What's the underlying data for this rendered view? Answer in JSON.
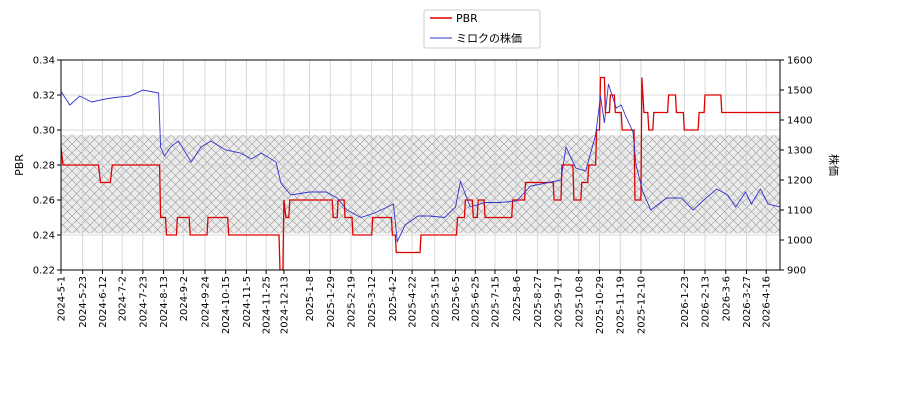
{
  "chart_data": {
    "type": "line",
    "title": "",
    "xlabel": "",
    "ylabel_left": "PBR",
    "ylabel_right": "株価",
    "ylim_left": [
      0.22,
      0.34
    ],
    "ylim_right": [
      900,
      1600
    ],
    "yticks_left": [
      "0.22",
      "0.24",
      "0.26",
      "0.28",
      "0.30",
      "0.32",
      "0.34"
    ],
    "yticks_right": [
      "900",
      "1000",
      "1100",
      "1200",
      "1300",
      "1400",
      "1500",
      "1600"
    ],
    "x_range": [
      "2024-5-1",
      "2026-4-30"
    ],
    "xticks": [
      "2024-5-1",
      "2024-5-23",
      "2024-6-12",
      "2024-7-2",
      "2024-7-23",
      "2024-8-13",
      "2024-9-2",
      "2024-9-24",
      "2024-10-15",
      "2024-11-5",
      "2024-11-25",
      "2024-12-13",
      "2025-1-8",
      "2025-1-29",
      "2025-2-19",
      "2025-3-12",
      "2025-4-2",
      "2025-4-22",
      "2025-5-15",
      "2025-6-5",
      "2025-6-25",
      "2025-7-15",
      "2025-8-6",
      "2025-8-27",
      "2025-9-17",
      "2025-10-8",
      "2025-10-29",
      "2025-11-19",
      "2025-12-10",
      "2026-1-23",
      "2026-2-13",
      "2026-3-6",
      "2026-3-27",
      "2026-4-16"
    ],
    "grid": true,
    "legend_position": "top-center",
    "band": {
      "pbr_low": 0.241,
      "pbr_high": 0.297
    },
    "series": [
      {
        "name": "PBR",
        "color": "#dd0000",
        "axis": "left",
        "points": [
          [
            "2024-5-1",
            0.29
          ],
          [
            "2024-5-3",
            0.28
          ],
          [
            "2024-6-8",
            0.28
          ],
          [
            "2024-6-10",
            0.27
          ],
          [
            "2024-6-20",
            0.27
          ],
          [
            "2024-6-22",
            0.28
          ],
          [
            "2024-8-9",
            0.28
          ],
          [
            "2024-8-10",
            0.25
          ],
          [
            "2024-8-15",
            0.25
          ],
          [
            "2024-8-16",
            0.24
          ],
          [
            "2024-8-26",
            0.24
          ],
          [
            "2024-8-27",
            0.25
          ],
          [
            "2024-9-8",
            0.25
          ],
          [
            "2024-9-9",
            0.24
          ],
          [
            "2024-9-26",
            0.24
          ],
          [
            "2024-9-27",
            0.25
          ],
          [
            "2024-10-17",
            0.25
          ],
          [
            "2024-10-18",
            0.24
          ],
          [
            "2024-12-8",
            0.24
          ],
          [
            "2024-12-9",
            0.22
          ],
          [
            "2024-12-12",
            0.22
          ],
          [
            "2024-12-13",
            0.26
          ],
          [
            "2024-12-15",
            0.25
          ],
          [
            "2024-12-18",
            0.25
          ],
          [
            "2024-12-19",
            0.26
          ],
          [
            "2025-1-31",
            0.26
          ],
          [
            "2025-2-1",
            0.25
          ],
          [
            "2025-2-5",
            0.25
          ],
          [
            "2025-2-6",
            0.26
          ],
          [
            "2025-2-12",
            0.26
          ],
          [
            "2025-2-13",
            0.25
          ],
          [
            "2025-2-20",
            0.25
          ],
          [
            "2025-2-21",
            0.24
          ],
          [
            "2025-3-12",
            0.24
          ],
          [
            "2025-3-13",
            0.25
          ],
          [
            "2025-4-1",
            0.25
          ],
          [
            "2025-4-2",
            0.24
          ],
          [
            "2025-4-5",
            0.24
          ],
          [
            "2025-4-6",
            0.23
          ],
          [
            "2025-4-30",
            0.23
          ],
          [
            "2025-5-1",
            0.24
          ],
          [
            "2025-6-6",
            0.24
          ],
          [
            "2025-6-7",
            0.25
          ],
          [
            "2025-6-14",
            0.25
          ],
          [
            "2025-6-15",
            0.26
          ],
          [
            "2025-6-22",
            0.26
          ],
          [
            "2025-6-23",
            0.25
          ],
          [
            "2025-6-27",
            0.25
          ],
          [
            "2025-6-28",
            0.26
          ],
          [
            "2025-7-4",
            0.26
          ],
          [
            "2025-7-5",
            0.25
          ],
          [
            "2025-8-1",
            0.25
          ],
          [
            "2025-8-2",
            0.26
          ],
          [
            "2025-8-14",
            0.26
          ],
          [
            "2025-8-15",
            0.27
          ],
          [
            "2025-9-12",
            0.27
          ],
          [
            "2025-9-13",
            0.26
          ],
          [
            "2025-9-20",
            0.26
          ],
          [
            "2025-9-21",
            0.28
          ],
          [
            "2025-10-2",
            0.28
          ],
          [
            "2025-10-3",
            0.26
          ],
          [
            "2025-10-10",
            0.26
          ],
          [
            "2025-10-11",
            0.27
          ],
          [
            "2025-10-17",
            0.27
          ],
          [
            "2025-10-18",
            0.28
          ],
          [
            "2025-10-25",
            0.28
          ],
          [
            "2025-10-26",
            0.3
          ],
          [
            "2025-10-29",
            0.3
          ],
          [
            "2025-10-30",
            0.33
          ],
          [
            "2025-11-3",
            0.33
          ],
          [
            "2025-11-4",
            0.31
          ],
          [
            "2025-11-8",
            0.31
          ],
          [
            "2025-11-9",
            0.32
          ],
          [
            "2025-11-13",
            0.32
          ],
          [
            "2025-11-14",
            0.31
          ],
          [
            "2025-11-20",
            0.31
          ],
          [
            "2025-11-21",
            0.3
          ],
          [
            "2025-12-3",
            0.3
          ],
          [
            "2025-12-4",
            0.26
          ],
          [
            "2025-12-10",
            0.26
          ],
          [
            "2025-12-11",
            0.33
          ],
          [
            "2025-12-13",
            0.31
          ],
          [
            "2025-12-17",
            0.31
          ],
          [
            "2025-12-18",
            0.3
          ],
          [
            "2025-12-22",
            0.3
          ],
          [
            "2025-12-23",
            0.31
          ],
          [
            "2026-1-6",
            0.31
          ],
          [
            "2026-1-7",
            0.32
          ],
          [
            "2026-1-14",
            0.32
          ],
          [
            "2026-1-15",
            0.31
          ],
          [
            "2026-1-22",
            0.31
          ],
          [
            "2026-1-23",
            0.3
          ],
          [
            "2026-2-6",
            0.3
          ],
          [
            "2026-2-7",
            0.31
          ],
          [
            "2026-2-12",
            0.31
          ],
          [
            "2026-2-13",
            0.32
          ],
          [
            "2026-3-1",
            0.32
          ],
          [
            "2026-3-2",
            0.31
          ],
          [
            "2026-4-30",
            0.31
          ]
        ]
      },
      {
        "name": "ミロクの株価",
        "color": "#3333cc",
        "axis": "right",
        "points": [
          [
            "2024-5-1",
            1495
          ],
          [
            "2024-5-10",
            1450
          ],
          [
            "2024-5-20",
            1480
          ],
          [
            "2024-6-1",
            1460
          ],
          [
            "2024-6-15",
            1470
          ],
          [
            "2024-6-25",
            1475
          ],
          [
            "2024-7-10",
            1480
          ],
          [
            "2024-7-23",
            1500
          ],
          [
            "2024-8-8",
            1490
          ],
          [
            "2024-8-10",
            1310
          ],
          [
            "2024-8-14",
            1280
          ],
          [
            "2024-8-20",
            1310
          ],
          [
            "2024-8-28",
            1330
          ],
          [
            "2024-9-10",
            1260
          ],
          [
            "2024-9-20",
            1310
          ],
          [
            "2024-9-30",
            1330
          ],
          [
            "2024-10-15",
            1300
          ],
          [
            "2024-10-30",
            1290
          ],
          [
            "2024-11-10",
            1270
          ],
          [
            "2024-11-20",
            1290
          ],
          [
            "2024-12-5",
            1260
          ],
          [
            "2024-12-10",
            1190
          ],
          [
            "2024-12-20",
            1150
          ],
          [
            "2025-1-8",
            1160
          ],
          [
            "2025-1-25",
            1160
          ],
          [
            "2025-2-5",
            1140
          ],
          [
            "2025-2-15",
            1100
          ],
          [
            "2025-3-1",
            1075
          ],
          [
            "2025-3-15",
            1090
          ],
          [
            "2025-3-28",
            1110
          ],
          [
            "2025-4-3",
            1120
          ],
          [
            "2025-4-7",
            995
          ],
          [
            "2025-4-15",
            1050
          ],
          [
            "2025-4-28",
            1080
          ],
          [
            "2025-5-10",
            1080
          ],
          [
            "2025-5-25",
            1075
          ],
          [
            "2025-6-5",
            1110
          ],
          [
            "2025-6-10",
            1195
          ],
          [
            "2025-6-20",
            1110
          ],
          [
            "2025-7-5",
            1125
          ],
          [
            "2025-7-20",
            1125
          ],
          [
            "2025-8-6",
            1130
          ],
          [
            "2025-8-20",
            1180
          ],
          [
            "2025-9-5",
            1190
          ],
          [
            "2025-9-20",
            1200
          ],
          [
            "2025-9-25",
            1310
          ],
          [
            "2025-10-5",
            1240
          ],
          [
            "2025-10-15",
            1230
          ],
          [
            "2025-10-25",
            1350
          ],
          [
            "2025-10-30",
            1480
          ],
          [
            "2025-11-3",
            1390
          ],
          [
            "2025-11-7",
            1520
          ],
          [
            "2025-11-10",
            1490
          ],
          [
            "2025-11-15",
            1440
          ],
          [
            "2025-11-20",
            1450
          ],
          [
            "2025-11-25",
            1410
          ],
          [
            "2025-12-2",
            1360
          ],
          [
            "2025-12-5",
            1250
          ],
          [
            "2025-12-12",
            1160
          ],
          [
            "2025-12-20",
            1100
          ],
          [
            "2026-1-5",
            1140
          ],
          [
            "2026-1-20",
            1140
          ],
          [
            "2026-2-1",
            1100
          ],
          [
            "2026-2-14",
            1140
          ],
          [
            "2026-2-25",
            1170
          ],
          [
            "2026-3-8",
            1150
          ],
          [
            "2026-3-16",
            1110
          ],
          [
            "2026-3-26",
            1160
          ],
          [
            "2026-4-1",
            1120
          ],
          [
            "2026-4-10",
            1170
          ],
          [
            "2026-4-18",
            1120
          ],
          [
            "2026-4-30",
            1110
          ]
        ]
      }
    ]
  }
}
